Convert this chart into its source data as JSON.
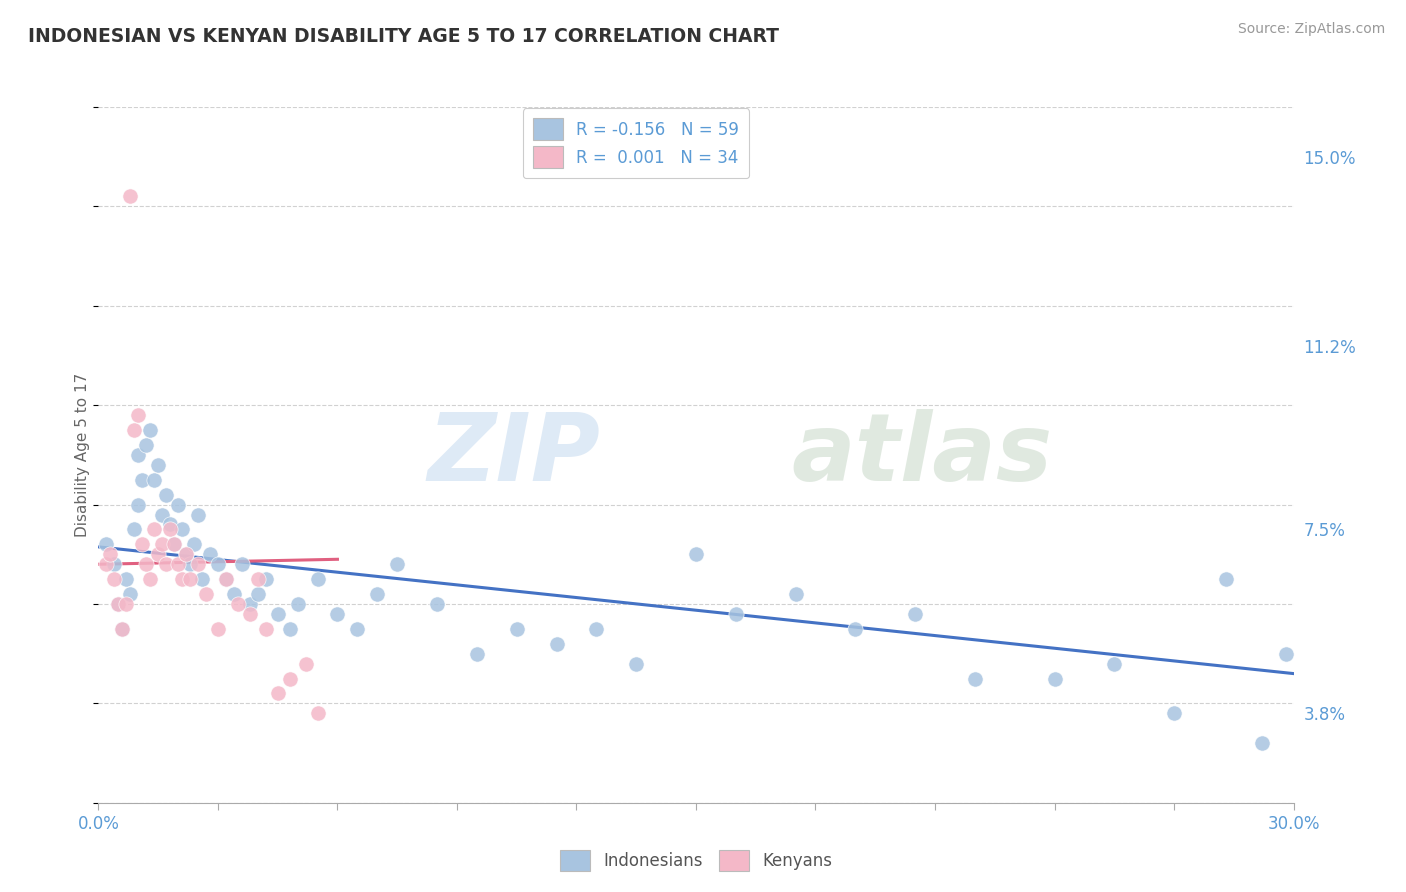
{
  "title": "INDONESIAN VS KENYAN DISABILITY AGE 5 TO 17 CORRELATION CHART",
  "source": "Source: ZipAtlas.com",
  "ylabel": "Disability Age 5 to 17",
  "xmin": 0.0,
  "xmax": 0.3,
  "ymin": 0.02,
  "ymax": 0.16,
  "xticks": [
    0.0,
    0.03,
    0.06,
    0.09,
    0.12,
    0.15,
    0.18,
    0.21,
    0.24,
    0.27,
    0.3
  ],
  "yticks": [
    0.038,
    0.075,
    0.112,
    0.15
  ],
  "ytick_labels": [
    "3.8%",
    "7.5%",
    "11.2%",
    "15.0%"
  ],
  "legend_r_indonesian": "-0.156",
  "legend_n_indonesian": "59",
  "legend_r_kenyan": "0.001",
  "legend_n_kenyan": "34",
  "indonesian_color": "#a8c4e0",
  "kenyan_color": "#f4b8c8",
  "indonesian_line_color": "#4472c4",
  "kenyan_line_color": "#e06080",
  "background_color": "#ffffff",
  "indonesian_x": [
    0.002,
    0.004,
    0.005,
    0.006,
    0.007,
    0.008,
    0.009,
    0.01,
    0.01,
    0.011,
    0.012,
    0.013,
    0.014,
    0.015,
    0.016,
    0.017,
    0.018,
    0.019,
    0.02,
    0.021,
    0.022,
    0.023,
    0.024,
    0.025,
    0.026,
    0.028,
    0.03,
    0.032,
    0.034,
    0.036,
    0.038,
    0.04,
    0.042,
    0.045,
    0.048,
    0.05,
    0.055,
    0.06,
    0.065,
    0.07,
    0.075,
    0.085,
    0.095,
    0.105,
    0.115,
    0.125,
    0.135,
    0.15,
    0.16,
    0.175,
    0.19,
    0.205,
    0.22,
    0.24,
    0.255,
    0.27,
    0.283,
    0.292,
    0.298
  ],
  "indonesian_y": [
    0.072,
    0.068,
    0.06,
    0.055,
    0.065,
    0.062,
    0.075,
    0.08,
    0.09,
    0.085,
    0.092,
    0.095,
    0.085,
    0.088,
    0.078,
    0.082,
    0.076,
    0.072,
    0.08,
    0.075,
    0.07,
    0.068,
    0.072,
    0.078,
    0.065,
    0.07,
    0.068,
    0.065,
    0.062,
    0.068,
    0.06,
    0.062,
    0.065,
    0.058,
    0.055,
    0.06,
    0.065,
    0.058,
    0.055,
    0.062,
    0.068,
    0.06,
    0.05,
    0.055,
    0.052,
    0.055,
    0.048,
    0.07,
    0.058,
    0.062,
    0.055,
    0.058,
    0.045,
    0.045,
    0.048,
    0.038,
    0.065,
    0.032,
    0.05
  ],
  "kenyan_x": [
    0.002,
    0.003,
    0.004,
    0.005,
    0.006,
    0.007,
    0.008,
    0.009,
    0.01,
    0.011,
    0.012,
    0.013,
    0.014,
    0.015,
    0.016,
    0.017,
    0.018,
    0.019,
    0.02,
    0.021,
    0.022,
    0.023,
    0.025,
    0.027,
    0.03,
    0.032,
    0.035,
    0.038,
    0.04,
    0.042,
    0.045,
    0.048,
    0.052,
    0.055
  ],
  "kenyan_y": [
    0.068,
    0.07,
    0.065,
    0.06,
    0.055,
    0.06,
    0.142,
    0.095,
    0.098,
    0.072,
    0.068,
    0.065,
    0.075,
    0.07,
    0.072,
    0.068,
    0.075,
    0.072,
    0.068,
    0.065,
    0.07,
    0.065,
    0.068,
    0.062,
    0.055,
    0.065,
    0.06,
    0.058,
    0.065,
    0.055,
    0.042,
    0.045,
    0.048,
    0.038
  ],
  "indo_line_x0": 0.0,
  "indo_line_y0": 0.0715,
  "indo_line_x1": 0.3,
  "indo_line_y1": 0.046,
  "ken_line_x0": 0.0,
  "ken_line_y0": 0.068,
  "ken_line_x1": 0.06,
  "ken_line_y1": 0.069
}
